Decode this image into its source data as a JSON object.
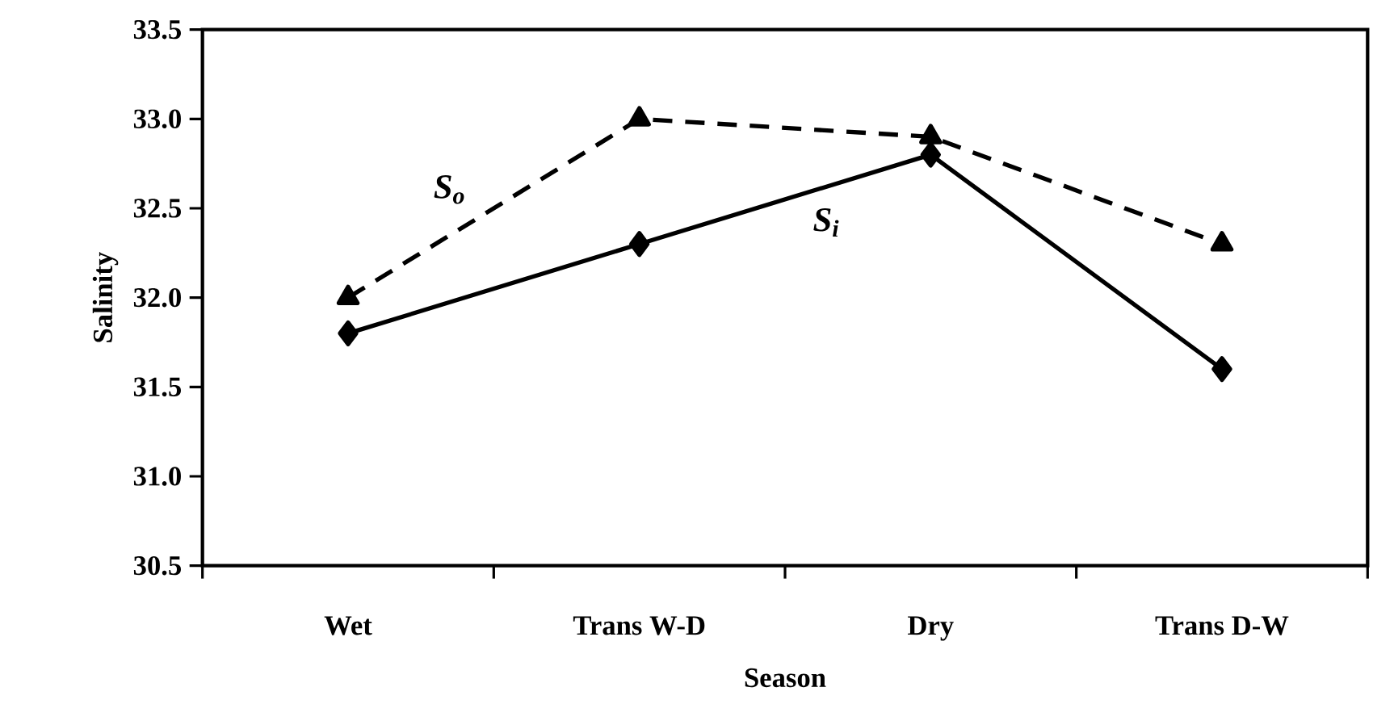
{
  "chart_data": {
    "type": "line",
    "xlabel": "Season",
    "ylabel": "Salinity",
    "categories": [
      "Wet",
      "Trans W-D",
      "Dry",
      "Trans D-W"
    ],
    "series": [
      {
        "name": "S$_{o}$",
        "color": "#000000",
        "values": [
          32.0,
          33.0,
          32.9,
          32.3
        ],
        "marker": "triangle",
        "line_style": "dashed"
      },
      {
        "name": "S$_{i}$",
        "color": "#000000",
        "values": [
          31.8,
          32.3,
          32.8,
          31.6
        ],
        "marker": "diamond",
        "line_style": "solid"
      }
    ],
    "ylim": [
      30.5,
      33.5
    ],
    "yticks": [
      30.5,
      {
        "value": 31.0,
        "label": "31.0"
      },
      31.5,
      {
        "value": 32.0,
        "label": "32.0"
      },
      32.5,
      {
        "value": 33.0,
        "label": "33.0"
      },
      33.5
    ],
    "grid": false
  }
}
